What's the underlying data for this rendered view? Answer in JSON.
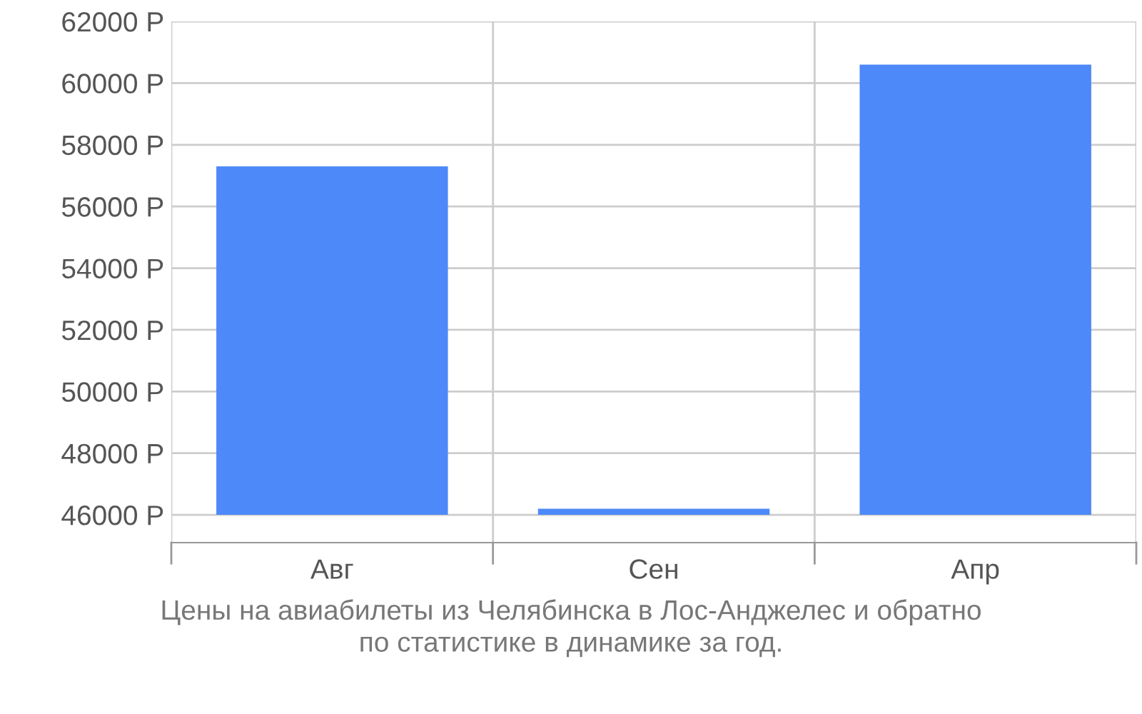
{
  "chart_data": {
    "type": "bar",
    "categories": [
      "Авг",
      "Сен",
      "Апр"
    ],
    "values": [
      11300,
      200,
      14600
    ],
    "base": [
      46000,
      46000,
      46000
    ],
    "color": "#4d89f9",
    "ylim": [
      45100,
      62000
    ],
    "yticks": [
      {
        "value": 46000,
        "label": "46000 Р"
      },
      {
        "value": 48000,
        "label": "48000 Р"
      },
      {
        "value": 50000,
        "label": "50000 Р"
      },
      {
        "value": 52000,
        "label": "52000 Р"
      },
      {
        "value": 54000,
        "label": "54000 Р"
      },
      {
        "value": 56000,
        "label": "56000 Р"
      },
      {
        "value": 58000,
        "label": "58000 Р"
      },
      {
        "value": 60000,
        "label": "60000 Р"
      },
      {
        "value": 62000,
        "label": "62000 Р"
      }
    ],
    "grid": true,
    "annotations": [
      "Цены на авиабилеты из Челябинска в Лос-Анджелес и обратно\nпо статистике в динамике за год."
    ]
  }
}
